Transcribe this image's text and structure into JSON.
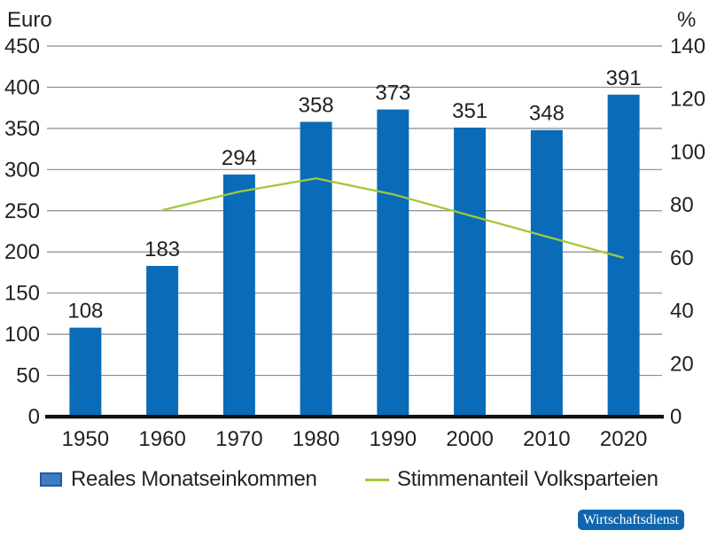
{
  "chart_data": {
    "type": "bar",
    "subtype": "bar-line-combo",
    "categories": [
      "1950",
      "1960",
      "1970",
      "1980",
      "1990",
      "2000",
      "2010",
      "2020"
    ],
    "series": [
      {
        "name": "Reales Monatseinkommen",
        "type": "bar",
        "axis": "left",
        "unit": "Euro",
        "values": [
          108,
          183,
          294,
          358,
          373,
          351,
          348,
          391
        ],
        "color": "#0a6cb8",
        "show_value_labels": true
      },
      {
        "name": "Stimmenanteil Volksparteien",
        "type": "line",
        "axis": "right",
        "unit": "%",
        "values": [
          null,
          78,
          85,
          90,
          84,
          76,
          68,
          60
        ],
        "color": "#a0c83c"
      }
    ],
    "left_axis": {
      "label": "Euro",
      "min": 0,
      "max": 450,
      "step": 50
    },
    "right_axis": {
      "label": "%",
      "min": 0,
      "max": 140,
      "step": 20
    },
    "grid": true,
    "legend_position": "bottom"
  },
  "legend": {
    "items": [
      {
        "label": "Reales Monatseinkommen",
        "swatch": "bar"
      },
      {
        "label": "Stimmenanteil Volksparteien",
        "swatch": "line"
      }
    ]
  },
  "badge": {
    "label": "Wirtschaftsdienst",
    "color": "#1066ae"
  },
  "colors": {
    "bar": "#0a6cb8",
    "line": "#a0c83c",
    "grid": "#8c8c8c",
    "axis": "#111111",
    "text": "#231f20",
    "legend_swatch_fill": "#3e7dc1",
    "legend_swatch_border": "#2257a5",
    "badge_bg": "#1066ae"
  }
}
